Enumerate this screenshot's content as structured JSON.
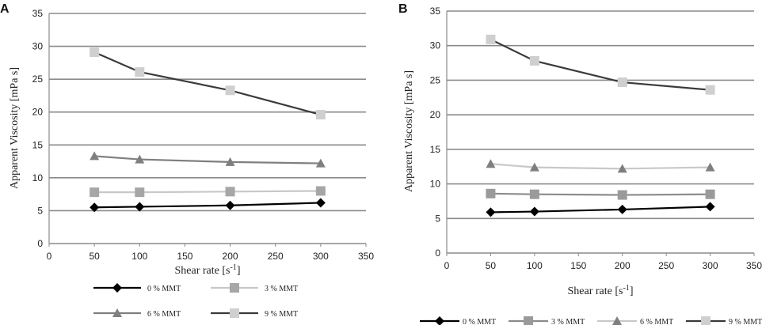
{
  "chart_data": [
    {
      "panel": "A",
      "type": "line",
      "xlabel": "Shear rate [s",
      "xlabel_sup": "-1",
      "xlabel_end": "]",
      "ylabel": "Apparent Viscosity [mPa s]",
      "xlim": [
        0,
        350
      ],
      "ylim": [
        0,
        35
      ],
      "xticks": [
        0,
        50,
        100,
        150,
        200,
        250,
        300,
        350
      ],
      "yticks": [
        0,
        5,
        10,
        15,
        20,
        25,
        30,
        35
      ],
      "grid": "horizontal",
      "legend_layout": "bottom, two columns",
      "x": [
        50,
        100,
        200,
        300
      ],
      "series": [
        {
          "name": "0 % MMT",
          "values": [
            5.5,
            5.6,
            5.8,
            6.2
          ],
          "line_color": "#000000",
          "marker": "diamond",
          "marker_color": "#000000"
        },
        {
          "name": "3 % MMT",
          "values": [
            7.8,
            7.8,
            7.9,
            8.0
          ],
          "line_color": "#c8c8c8",
          "marker": "square",
          "marker_color": "#a6a6a6"
        },
        {
          "name": "6 % MMT",
          "values": [
            13.3,
            12.8,
            12.4,
            12.2
          ],
          "line_color": "#7f7f7f",
          "marker": "triangle",
          "marker_color": "#7f7f7f"
        },
        {
          "name": "9 % MMT",
          "values": [
            29.1,
            26.1,
            23.3,
            19.6
          ],
          "line_color": "#3a3a3a",
          "marker": "square",
          "marker_color": "#cfcfcf"
        }
      ]
    },
    {
      "panel": "B",
      "type": "line",
      "xlabel": "Shear rate [s",
      "xlabel_sup": "-1",
      "xlabel_end": "]",
      "ylabel": "Apparent Viscosity [mPa s]",
      "xlim": [
        0,
        350
      ],
      "ylim": [
        0,
        35
      ],
      "xticks": [
        0,
        50,
        100,
        150,
        200,
        250,
        300,
        350
      ],
      "yticks": [
        0,
        5,
        10,
        15,
        20,
        25,
        30,
        35
      ],
      "grid": "horizontal",
      "legend_layout": "bottom, one row",
      "x": [
        50,
        100,
        200,
        300
      ],
      "series": [
        {
          "name": "0 % MMT",
          "values": [
            5.9,
            6.0,
            6.3,
            6.7
          ],
          "line_color": "#000000",
          "marker": "diamond",
          "marker_color": "#000000"
        },
        {
          "name": "3 % MMT",
          "values": [
            8.6,
            8.5,
            8.4,
            8.5
          ],
          "line_color": "#8c8c8c",
          "marker": "square",
          "marker_color": "#9a9a9a"
        },
        {
          "name": "6 % MMT",
          "values": [
            12.9,
            12.4,
            12.2,
            12.4
          ],
          "line_color": "#c8c8c8",
          "marker": "triangle",
          "marker_color": "#7f7f7f"
        },
        {
          "name": "9 % MMT",
          "values": [
            30.9,
            27.8,
            24.7,
            23.6
          ],
          "line_color": "#3a3a3a",
          "marker": "square",
          "marker_color": "#cfcfcf"
        }
      ]
    }
  ]
}
